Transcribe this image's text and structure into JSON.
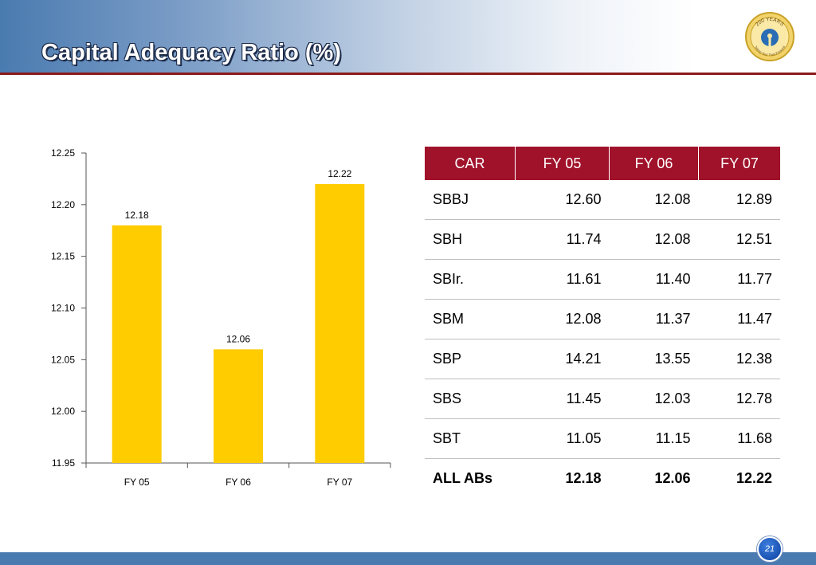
{
  "slide": {
    "title": "Capital Adequacy Ratio (%)",
    "page_number": "21",
    "logo": {
      "icon": "sbi-200-years-seal",
      "text_top": "200 YEARS",
      "text_bottom": "Taking Your Trust Forward"
    }
  },
  "chart_data": {
    "type": "bar",
    "categories": [
      "FY 05",
      "FY 06",
      "FY 07"
    ],
    "values": [
      12.18,
      12.06,
      12.22
    ],
    "data_labels": [
      "12.18",
      "12.06",
      "12.22"
    ],
    "ylim": [
      11.95,
      12.25
    ],
    "yticks": [
      "11.95",
      "12.00",
      "12.05",
      "12.10",
      "12.15",
      "12.20",
      "12.25"
    ],
    "bar_color": "#ffcc00",
    "grid": false
  },
  "table": {
    "headers": [
      "CAR",
      "FY 05",
      "FY 06",
      "FY 07"
    ],
    "rows": [
      {
        "name": "SBBJ",
        "values": [
          "12.60",
          "12.08",
          "12.89"
        ]
      },
      {
        "name": "SBH",
        "values": [
          "11.74",
          "12.08",
          "12.51"
        ]
      },
      {
        "name": "SBIr.",
        "values": [
          "11.61",
          "11.40",
          "11.77"
        ]
      },
      {
        "name": "SBM",
        "values": [
          "12.08",
          "11.37",
          "11.47"
        ]
      },
      {
        "name": "SBP",
        "values": [
          "14.21",
          "13.55",
          "12.38"
        ]
      },
      {
        "name": "SBS",
        "values": [
          "11.45",
          "12.03",
          "12.78"
        ]
      },
      {
        "name": "SBT",
        "values": [
          "11.05",
          "11.15",
          "11.68"
        ]
      }
    ],
    "total": {
      "name": "ALL ABs",
      "values": [
        "12.18",
        "12.06",
        "12.22"
      ]
    },
    "header_color": "#a0122a"
  }
}
